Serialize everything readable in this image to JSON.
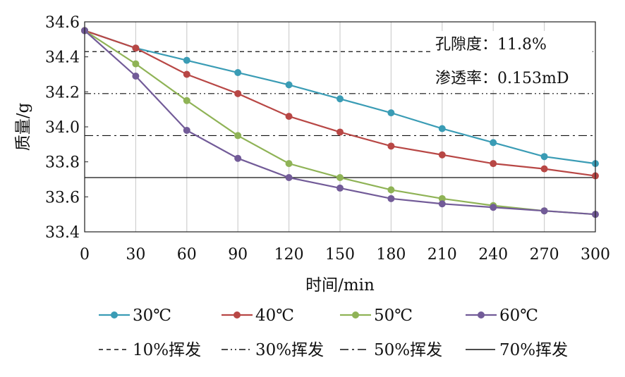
{
  "chart_data": {
    "type": "line",
    "xlabel": "时间/min",
    "ylabel": "质量/g",
    "xlim": [
      0,
      300
    ],
    "ylim": [
      33.4,
      34.6
    ],
    "x_ticks": [
      "0",
      "30",
      "60",
      "90",
      "120",
      "150",
      "180",
      "210",
      "240",
      "270",
      "300"
    ],
    "y_ticks": [
      "33.4",
      "33.6",
      "33.8",
      "34.0",
      "34.2",
      "34.4",
      "34.6"
    ],
    "grid": "vertical",
    "x": [
      0,
      30,
      60,
      90,
      120,
      150,
      180,
      210,
      240,
      270,
      300
    ],
    "series": [
      {
        "name": "30℃",
        "color": "#3a9cb5",
        "values": [
          34.55,
          34.45,
          34.38,
          34.31,
          34.24,
          34.16,
          34.08,
          33.99,
          33.91,
          33.83,
          33.79
        ]
      },
      {
        "name": "40℃",
        "color": "#b84745",
        "values": [
          34.55,
          34.45,
          34.3,
          34.19,
          34.06,
          33.97,
          33.89,
          33.84,
          33.79,
          33.76,
          33.72
        ]
      },
      {
        "name": "50℃",
        "color": "#8fb356",
        "values": [
          34.55,
          34.36,
          34.15,
          33.95,
          33.79,
          33.71,
          33.64,
          33.59,
          33.55,
          33.52,
          33.5
        ]
      },
      {
        "name": "60℃",
        "color": "#725b98",
        "values": [
          34.55,
          34.29,
          33.98,
          33.82,
          33.71,
          33.65,
          33.59,
          33.56,
          33.54,
          33.52,
          33.5
        ]
      }
    ],
    "reference_lines": [
      {
        "name": "10%挥发",
        "y": 34.43,
        "style": "dash"
      },
      {
        "name": "30%挥发",
        "y": 34.19,
        "style": "dashdotdot"
      },
      {
        "name": "50%挥发",
        "y": 33.95,
        "style": "dashdot"
      },
      {
        "name": "70%挥发",
        "y": 33.71,
        "style": "solid"
      }
    ],
    "annotations": [
      "孔隙度：11.8%",
      "渗透率：0.153mD"
    ],
    "legend_position": "bottom"
  }
}
